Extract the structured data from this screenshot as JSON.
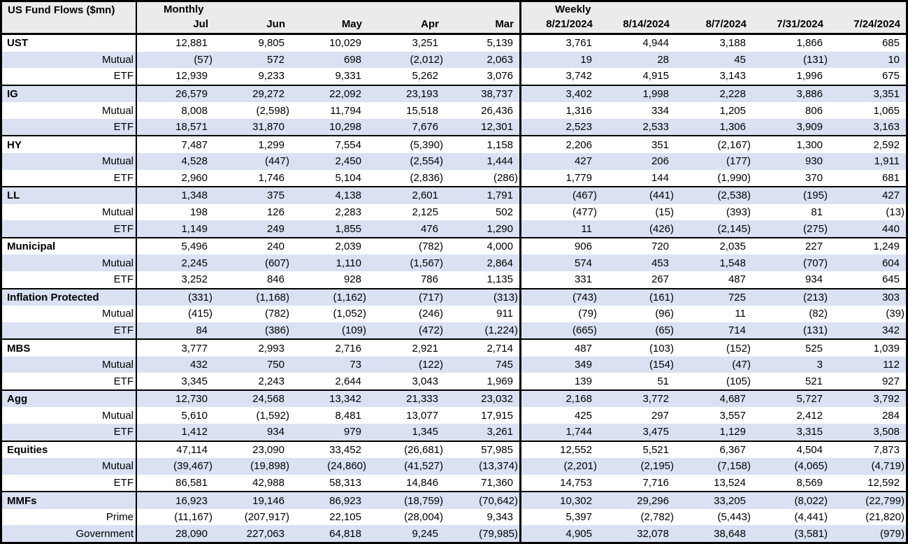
{
  "title": "US Fund Flows ($mn)",
  "colors": {
    "accent_row": "#D9E1F2",
    "header_bg": "#EBEBEB",
    "border": "#000000",
    "text": "#000000"
  },
  "chart_data": {
    "type": "table",
    "title": "US Fund Flows ($mn)",
    "column_groups": [
      {
        "label": "Monthly",
        "columns": [
          "Jul",
          "Jun",
          "May",
          "Apr",
          "Mar"
        ]
      },
      {
        "label": "Weekly",
        "columns": [
          "8/21/2024",
          "8/14/2024",
          "8/7/2024",
          "7/31/2024",
          "7/24/2024"
        ]
      }
    ],
    "sections": [
      {
        "rows": [
          {
            "label": "UST",
            "bold": true,
            "values": [
              "12,881",
              "9,805",
              "10,029",
              "3,251",
              "5,139",
              "3,761",
              "4,944",
              "3,188",
              "1,866",
              "685"
            ]
          },
          {
            "label": "Mutual",
            "bold": false,
            "values": [
              "(57)",
              "572",
              "698",
              "(2,012)",
              "2,063",
              "19",
              "28",
              "45",
              "(131)",
              "10"
            ]
          },
          {
            "label": "ETF",
            "bold": false,
            "values": [
              "12,939",
              "9,233",
              "9,331",
              "5,262",
              "3,076",
              "3,742",
              "4,915",
              "3,143",
              "1,996",
              "675"
            ]
          }
        ]
      },
      {
        "rows": [
          {
            "label": "IG",
            "bold": true,
            "values": [
              "26,579",
              "29,272",
              "22,092",
              "23,193",
              "38,737",
              "3,402",
              "1,998",
              "2,228",
              "3,886",
              "3,351"
            ]
          },
          {
            "label": "Mutual",
            "bold": false,
            "values": [
              "8,008",
              "(2,598)",
              "11,794",
              "15,518",
              "26,436",
              "1,316",
              "334",
              "1,205",
              "806",
              "1,065"
            ]
          },
          {
            "label": "ETF",
            "bold": false,
            "values": [
              "18,571",
              "31,870",
              "10,298",
              "7,676",
              "12,301",
              "2,523",
              "2,533",
              "1,306",
              "3,909",
              "3,163"
            ]
          }
        ]
      },
      {
        "rows": [
          {
            "label": "HY",
            "bold": true,
            "values": [
              "7,487",
              "1,299",
              "7,554",
              "(5,390)",
              "1,158",
              "2,206",
              "351",
              "(2,167)",
              "1,300",
              "2,592"
            ]
          },
          {
            "label": "Mutual",
            "bold": false,
            "values": [
              "4,528",
              "(447)",
              "2,450",
              "(2,554)",
              "1,444",
              "427",
              "206",
              "(177)",
              "930",
              "1,911"
            ]
          },
          {
            "label": "ETF",
            "bold": false,
            "values": [
              "2,960",
              "1,746",
              "5,104",
              "(2,836)",
              "(286)",
              "1,779",
              "144",
              "(1,990)",
              "370",
              "681"
            ]
          }
        ]
      },
      {
        "rows": [
          {
            "label": "LL",
            "bold": true,
            "values": [
              "1,348",
              "375",
              "4,138",
              "2,601",
              "1,791",
              "(467)",
              "(441)",
              "(2,538)",
              "(195)",
              "427"
            ]
          },
          {
            "label": "Mutual",
            "bold": false,
            "values": [
              "198",
              "126",
              "2,283",
              "2,125",
              "502",
              "(477)",
              "(15)",
              "(393)",
              "81",
              "(13)"
            ]
          },
          {
            "label": "ETF",
            "bold": false,
            "values": [
              "1,149",
              "249",
              "1,855",
              "476",
              "1,290",
              "11",
              "(426)",
              "(2,145)",
              "(275)",
              "440"
            ]
          }
        ]
      },
      {
        "rows": [
          {
            "label": "Municipal",
            "bold": true,
            "values": [
              "5,496",
              "240",
              "2,039",
              "(782)",
              "4,000",
              "906",
              "720",
              "2,035",
              "227",
              "1,249"
            ]
          },
          {
            "label": "Mutual",
            "bold": false,
            "values": [
              "2,245",
              "(607)",
              "1,110",
              "(1,567)",
              "2,864",
              "574",
              "453",
              "1,548",
              "(707)",
              "604"
            ]
          },
          {
            "label": "ETF",
            "bold": false,
            "values": [
              "3,252",
              "846",
              "928",
              "786",
              "1,135",
              "331",
              "267",
              "487",
              "934",
              "645"
            ]
          }
        ]
      },
      {
        "rows": [
          {
            "label": "Inflation Protected",
            "bold": true,
            "values": [
              "(331)",
              "(1,168)",
              "(1,162)",
              "(717)",
              "(313)",
              "(743)",
              "(161)",
              "725",
              "(213)",
              "303"
            ]
          },
          {
            "label": "Mutual",
            "bold": false,
            "values": [
              "(415)",
              "(782)",
              "(1,052)",
              "(246)",
              "911",
              "(79)",
              "(96)",
              "11",
              "(82)",
              "(39)"
            ]
          },
          {
            "label": "ETF",
            "bold": false,
            "values": [
              "84",
              "(386)",
              "(109)",
              "(472)",
              "(1,224)",
              "(665)",
              "(65)",
              "714",
              "(131)",
              "342"
            ]
          }
        ]
      },
      {
        "rows": [
          {
            "label": "MBS",
            "bold": true,
            "values": [
              "3,777",
              "2,993",
              "2,716",
              "2,921",
              "2,714",
              "487",
              "(103)",
              "(152)",
              "525",
              "1,039"
            ]
          },
          {
            "label": "Mutual",
            "bold": false,
            "values": [
              "432",
              "750",
              "73",
              "(122)",
              "745",
              "349",
              "(154)",
              "(47)",
              "3",
              "112"
            ]
          },
          {
            "label": "ETF",
            "bold": false,
            "values": [
              "3,345",
              "2,243",
              "2,644",
              "3,043",
              "1,969",
              "139",
              "51",
              "(105)",
              "521",
              "927"
            ]
          }
        ]
      },
      {
        "rows": [
          {
            "label": "Agg",
            "bold": true,
            "values": [
              "12,730",
              "24,568",
              "13,342",
              "21,333",
              "23,032",
              "2,168",
              "3,772",
              "4,687",
              "5,727",
              "3,792"
            ]
          },
          {
            "label": "Mutual",
            "bold": false,
            "values": [
              "5,610",
              "(1,592)",
              "8,481",
              "13,077",
              "17,915",
              "425",
              "297",
              "3,557",
              "2,412",
              "284"
            ]
          },
          {
            "label": "ETF",
            "bold": false,
            "values": [
              "1,412",
              "934",
              "979",
              "1,345",
              "3,261",
              "1,744",
              "3,475",
              "1,129",
              "3,315",
              "3,508"
            ]
          }
        ]
      },
      {
        "rows": [
          {
            "label": "Equities",
            "bold": true,
            "values": [
              "47,114",
              "23,090",
              "33,452",
              "(26,681)",
              "57,985",
              "12,552",
              "5,521",
              "6,367",
              "4,504",
              "7,873"
            ]
          },
          {
            "label": "Mutual",
            "bold": false,
            "values": [
              "(39,467)",
              "(19,898)",
              "(24,860)",
              "(41,527)",
              "(13,374)",
              "(2,201)",
              "(2,195)",
              "(7,158)",
              "(4,065)",
              "(4,719)"
            ]
          },
          {
            "label": "ETF",
            "bold": false,
            "values": [
              "86,581",
              "42,988",
              "58,313",
              "14,846",
              "71,360",
              "14,753",
              "7,716",
              "13,524",
              "8,569",
              "12,592"
            ]
          }
        ]
      },
      {
        "rows": [
          {
            "label": "MMFs",
            "bold": true,
            "values": [
              "16,923",
              "19,146",
              "86,923",
              "(18,759)",
              "(70,642)",
              "10,302",
              "29,296",
              "33,205",
              "(8,022)",
              "(22,799)"
            ]
          },
          {
            "label": "Prime",
            "bold": false,
            "values": [
              "(11,167)",
              "(207,917)",
              "22,105",
              "(28,004)",
              "9,343",
              "5,397",
              "(2,782)",
              "(5,443)",
              "(4,441)",
              "(21,820)"
            ]
          },
          {
            "label": "Government",
            "bold": false,
            "values": [
              "28,090",
              "227,063",
              "64,818",
              "9,245",
              "(79,985)",
              "4,905",
              "32,078",
              "38,648",
              "(3,581)",
              "(979)"
            ]
          }
        ]
      }
    ]
  }
}
